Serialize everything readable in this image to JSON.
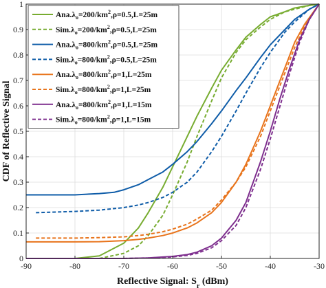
{
  "chart_data": {
    "type": "line",
    "title": "",
    "xlabel": "Reflective Signal: S",
    "xlabel_sub": "r",
    "xlabel_unit": " (dBm)",
    "ylabel": "CDF of Reflective Signal",
    "xlim": [
      -90,
      -30
    ],
    "ylim": [
      0,
      1
    ],
    "xticks": [
      -90,
      -80,
      -70,
      -60,
      -50,
      -40,
      -30
    ],
    "yticks": [
      0,
      0.1,
      0.2,
      0.3,
      0.4,
      0.5,
      0.6,
      0.7,
      0.8,
      0.9,
      1
    ],
    "xtick_labels": [
      "-90",
      "-80",
      "-70",
      "-60",
      "-50",
      "-40",
      "-30"
    ],
    "ytick_labels": [
      "0",
      "0.1",
      "0.2",
      "0.3",
      "0.4",
      "0.5",
      "0.6",
      "0.7",
      "0.8",
      "0.9",
      "1"
    ],
    "grid": true,
    "legend_position": "top-left",
    "series": [
      {
        "name_parts": [
          "Ana.",
          "λ",
          "o",
          "=200/km",
          "2",
          ",ρ=0.5,L=25m"
        ],
        "color": "#77AC30",
        "dash": "solid",
        "x": [
          -90,
          -80,
          -75,
          -70,
          -67,
          -65,
          -62,
          -60,
          -57,
          -55,
          -52,
          -50,
          -47,
          -45,
          -42,
          -40,
          -37,
          -35,
          -32,
          -30
        ],
        "y": [
          0,
          0,
          0.01,
          0.06,
          0.12,
          0.18,
          0.28,
          0.36,
          0.48,
          0.56,
          0.67,
          0.74,
          0.82,
          0.87,
          0.92,
          0.95,
          0.97,
          0.985,
          0.995,
          1
        ]
      },
      {
        "name_parts": [
          "Sim.",
          "λ",
          "o",
          "=200/km",
          "2",
          ",ρ=0.5,L=25m"
        ],
        "color": "#77AC30",
        "dash": "dashed",
        "x": [
          -75,
          -70,
          -67,
          -65,
          -62,
          -60,
          -57,
          -55,
          -52,
          -50,
          -47,
          -45,
          -42,
          -40,
          -37,
          -35,
          -32,
          -30
        ],
        "y": [
          0.0,
          0.02,
          0.05,
          0.09,
          0.17,
          0.25,
          0.38,
          0.48,
          0.62,
          0.71,
          0.81,
          0.86,
          0.91,
          0.94,
          0.97,
          0.98,
          0.995,
          1
        ]
      },
      {
        "name_parts": [
          "Ana.",
          "λ",
          "o",
          "=800/km",
          "2",
          ",ρ=0.5,L=25m"
        ],
        "color": "#0E5CA8",
        "dash": "solid",
        "x": [
          -90,
          -85,
          -80,
          -75,
          -72,
          -70,
          -67,
          -65,
          -62,
          -60,
          -57,
          -55,
          -52,
          -50,
          -47,
          -45,
          -42,
          -40,
          -37,
          -35,
          -32,
          -30
        ],
        "y": [
          0.25,
          0.25,
          0.25,
          0.255,
          0.26,
          0.27,
          0.29,
          0.31,
          0.34,
          0.37,
          0.42,
          0.46,
          0.53,
          0.58,
          0.66,
          0.71,
          0.79,
          0.84,
          0.9,
          0.94,
          0.98,
          1
        ]
      },
      {
        "name_parts": [
          "Sim.",
          "λ",
          "o",
          "=800/km",
          "2",
          ",ρ=0.5,L=25m"
        ],
        "color": "#0E5CA8",
        "dash": "dashed",
        "x": [
          -88,
          -80,
          -75,
          -70,
          -67,
          -65,
          -62,
          -60,
          -57,
          -55,
          -52,
          -50,
          -47,
          -45,
          -42,
          -40,
          -37,
          -35,
          -32,
          -30
        ],
        "y": [
          0.18,
          0.185,
          0.19,
          0.2,
          0.21,
          0.22,
          0.24,
          0.26,
          0.3,
          0.34,
          0.42,
          0.48,
          0.58,
          0.65,
          0.75,
          0.81,
          0.89,
          0.93,
          0.98,
          1
        ]
      },
      {
        "name_parts": [
          "Ana.",
          "λ",
          "o",
          "=800/km",
          "2",
          ",ρ=1,L=25m"
        ],
        "color": "#E8741C",
        "dash": "solid",
        "x": [
          -90,
          -80,
          -75,
          -70,
          -67,
          -65,
          -62,
          -60,
          -57,
          -55,
          -52,
          -50,
          -47,
          -45,
          -42,
          -40,
          -37,
          -35,
          -33,
          -30
        ],
        "y": [
          0.065,
          0.065,
          0.066,
          0.07,
          0.075,
          0.08,
          0.09,
          0.1,
          0.12,
          0.14,
          0.18,
          0.22,
          0.3,
          0.37,
          0.5,
          0.6,
          0.75,
          0.85,
          0.92,
          1
        ]
      },
      {
        "name_parts": [
          "Sim.",
          "λ",
          "o",
          "=800/km",
          "2",
          ",ρ=1,L=25m"
        ],
        "color": "#E8741C",
        "dash": "dashed",
        "x": [
          -88,
          -80,
          -75,
          -70,
          -67,
          -65,
          -62,
          -60,
          -57,
          -55,
          -52,
          -50,
          -47,
          -45,
          -42,
          -40,
          -37,
          -35,
          -33,
          -30
        ],
        "y": [
          0.08,
          0.08,
          0.082,
          0.085,
          0.09,
          0.095,
          0.105,
          0.115,
          0.135,
          0.155,
          0.19,
          0.23,
          0.3,
          0.36,
          0.48,
          0.58,
          0.73,
          0.83,
          0.91,
          1
        ]
      },
      {
        "name_parts": [
          "Ana.",
          "λ",
          "o",
          "=800/km",
          "2",
          ",ρ=1,L=15m"
        ],
        "color": "#7E2F8E",
        "dash": "solid",
        "x": [
          -90,
          -80,
          -70,
          -65,
          -60,
          -57,
          -55,
          -52,
          -50,
          -47,
          -45,
          -42,
          -40,
          -38,
          -36,
          -34,
          -32,
          -30
        ],
        "y": [
          0,
          0,
          0,
          0.002,
          0.008,
          0.015,
          0.025,
          0.05,
          0.08,
          0.15,
          0.22,
          0.38,
          0.5,
          0.63,
          0.75,
          0.86,
          0.94,
          1
        ]
      },
      {
        "name_parts": [
          "Sim.",
          "λ",
          "o",
          "=800/km",
          "2",
          ",ρ=1,L=15m"
        ],
        "color": "#7E2F8E",
        "dash": "dashed",
        "x": [
          -70,
          -65,
          -60,
          -57,
          -55,
          -52,
          -50,
          -47,
          -45,
          -42,
          -40,
          -38,
          -36,
          -34,
          -32,
          -30
        ],
        "y": [
          0,
          0.002,
          0.006,
          0.012,
          0.02,
          0.042,
          0.07,
          0.13,
          0.2,
          0.35,
          0.47,
          0.6,
          0.73,
          0.85,
          0.94,
          1
        ]
      }
    ]
  }
}
